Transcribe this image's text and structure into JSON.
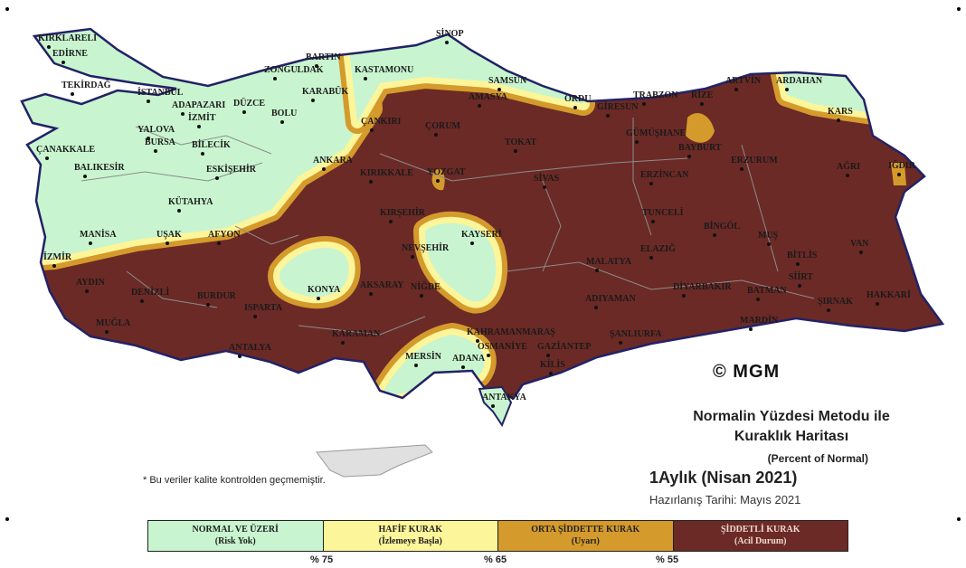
{
  "map": {
    "colors": {
      "normal": "#c8f5cf",
      "hafif": "#fdf59a",
      "orta": "#d49a2c",
      "siddetli": "#6b2a26",
      "border": "#222266",
      "province": "#8c8c8c"
    },
    "cities": [
      "KIRKLARELİ",
      "EDİRNE",
      "TEKİRDAĞ",
      "İSTANBUL",
      "SİNOP",
      "BARTIN",
      "ZONGULDAK",
      "KASTAMONU",
      "KARABÜK",
      "ADAPAZARI",
      "DÜZCE",
      "BOLU",
      "İZMİT",
      "YALOVA",
      "BURSA",
      "BİLECİK",
      "ÇANAKKALE",
      "BALIKESİR",
      "ESKİŞEHİR",
      "ANKARA",
      "KIRIKKALE",
      "ÇANKIRI",
      "ÇORUM",
      "AMASYA",
      "SAMSUN",
      "ORDU",
      "GİRESUN",
      "TRABZON",
      "RİZE",
      "ARTVİN",
      "ARDAHAN",
      "KARS",
      "IĞDIR",
      "AĞRI",
      "GÜMÜŞHANE",
      "BAYBURT",
      "ERZURUM",
      "ERZİNCAN",
      "TOKAT",
      "SİVAS",
      "YOZGAT",
      "KÜTAHYA",
      "MANİSA",
      "İZMİR",
      "UŞAK",
      "AFYON",
      "KIRŞEHİR",
      "NEVŞEHİR",
      "KAYSERİ",
      "AKSARAY",
      "KONYA",
      "NİĞDE",
      "AYDIN",
      "DENİZLİ",
      "BURDUR",
      "ISPARTA",
      "MUĞLA",
      "ANTALYA",
      "KARAMAN",
      "MERSİN",
      "ADANA",
      "OSMANİYE",
      "KAHRAMANMARAŞ",
      "GAZİANTEP",
      "KİLİS",
      "ANTAKYA",
      "ADIYAMAN",
      "MALATYA",
      "ELAZIĞ",
      "TUNCELİ",
      "BİNGÖL",
      "MUŞ",
      "BİTLİS",
      "VAN",
      "DİYARBAKIR",
      "BATMAN",
      "SİİRT",
      "ŞIRNAK",
      "HAKKARİ",
      "MARDİN",
      "ŞANLIURFA"
    ],
    "watermark": "© MGM"
  },
  "title": {
    "line1": "Normalin Yüzdesi Metodu ile",
    "line2": "Kuraklık Haritası",
    "line3": "(Percent of Normal)",
    "period": "1Aylık (Nisan 2021)",
    "prepared": "Hazırlanış Tarihi: Mayıs 2021"
  },
  "note": "* Bu veriler kalite kontrolden geçmemiştir.",
  "legend": {
    "items": [
      {
        "label": "NORMAL VE ÜZERİ",
        "sub": "(Risk Yok)",
        "color": "#c8f5cf",
        "text": "#222"
      },
      {
        "label": "HAFİF KURAK",
        "sub": "(İzlemeye Başla)",
        "color": "#fdf59a",
        "text": "#222"
      },
      {
        "label": "ORTA ŞİDDETTE KURAK",
        "sub": "(Uyarı)",
        "color": "#d49a2c",
        "text": "#222"
      },
      {
        "label": "ŞİDDETLİ KURAK",
        "sub": "(Acil Durum)",
        "color": "#6b2a26",
        "text": "#f0d8d0"
      }
    ],
    "thresholds": [
      "% 75",
      "% 65",
      "% 55"
    ]
  }
}
